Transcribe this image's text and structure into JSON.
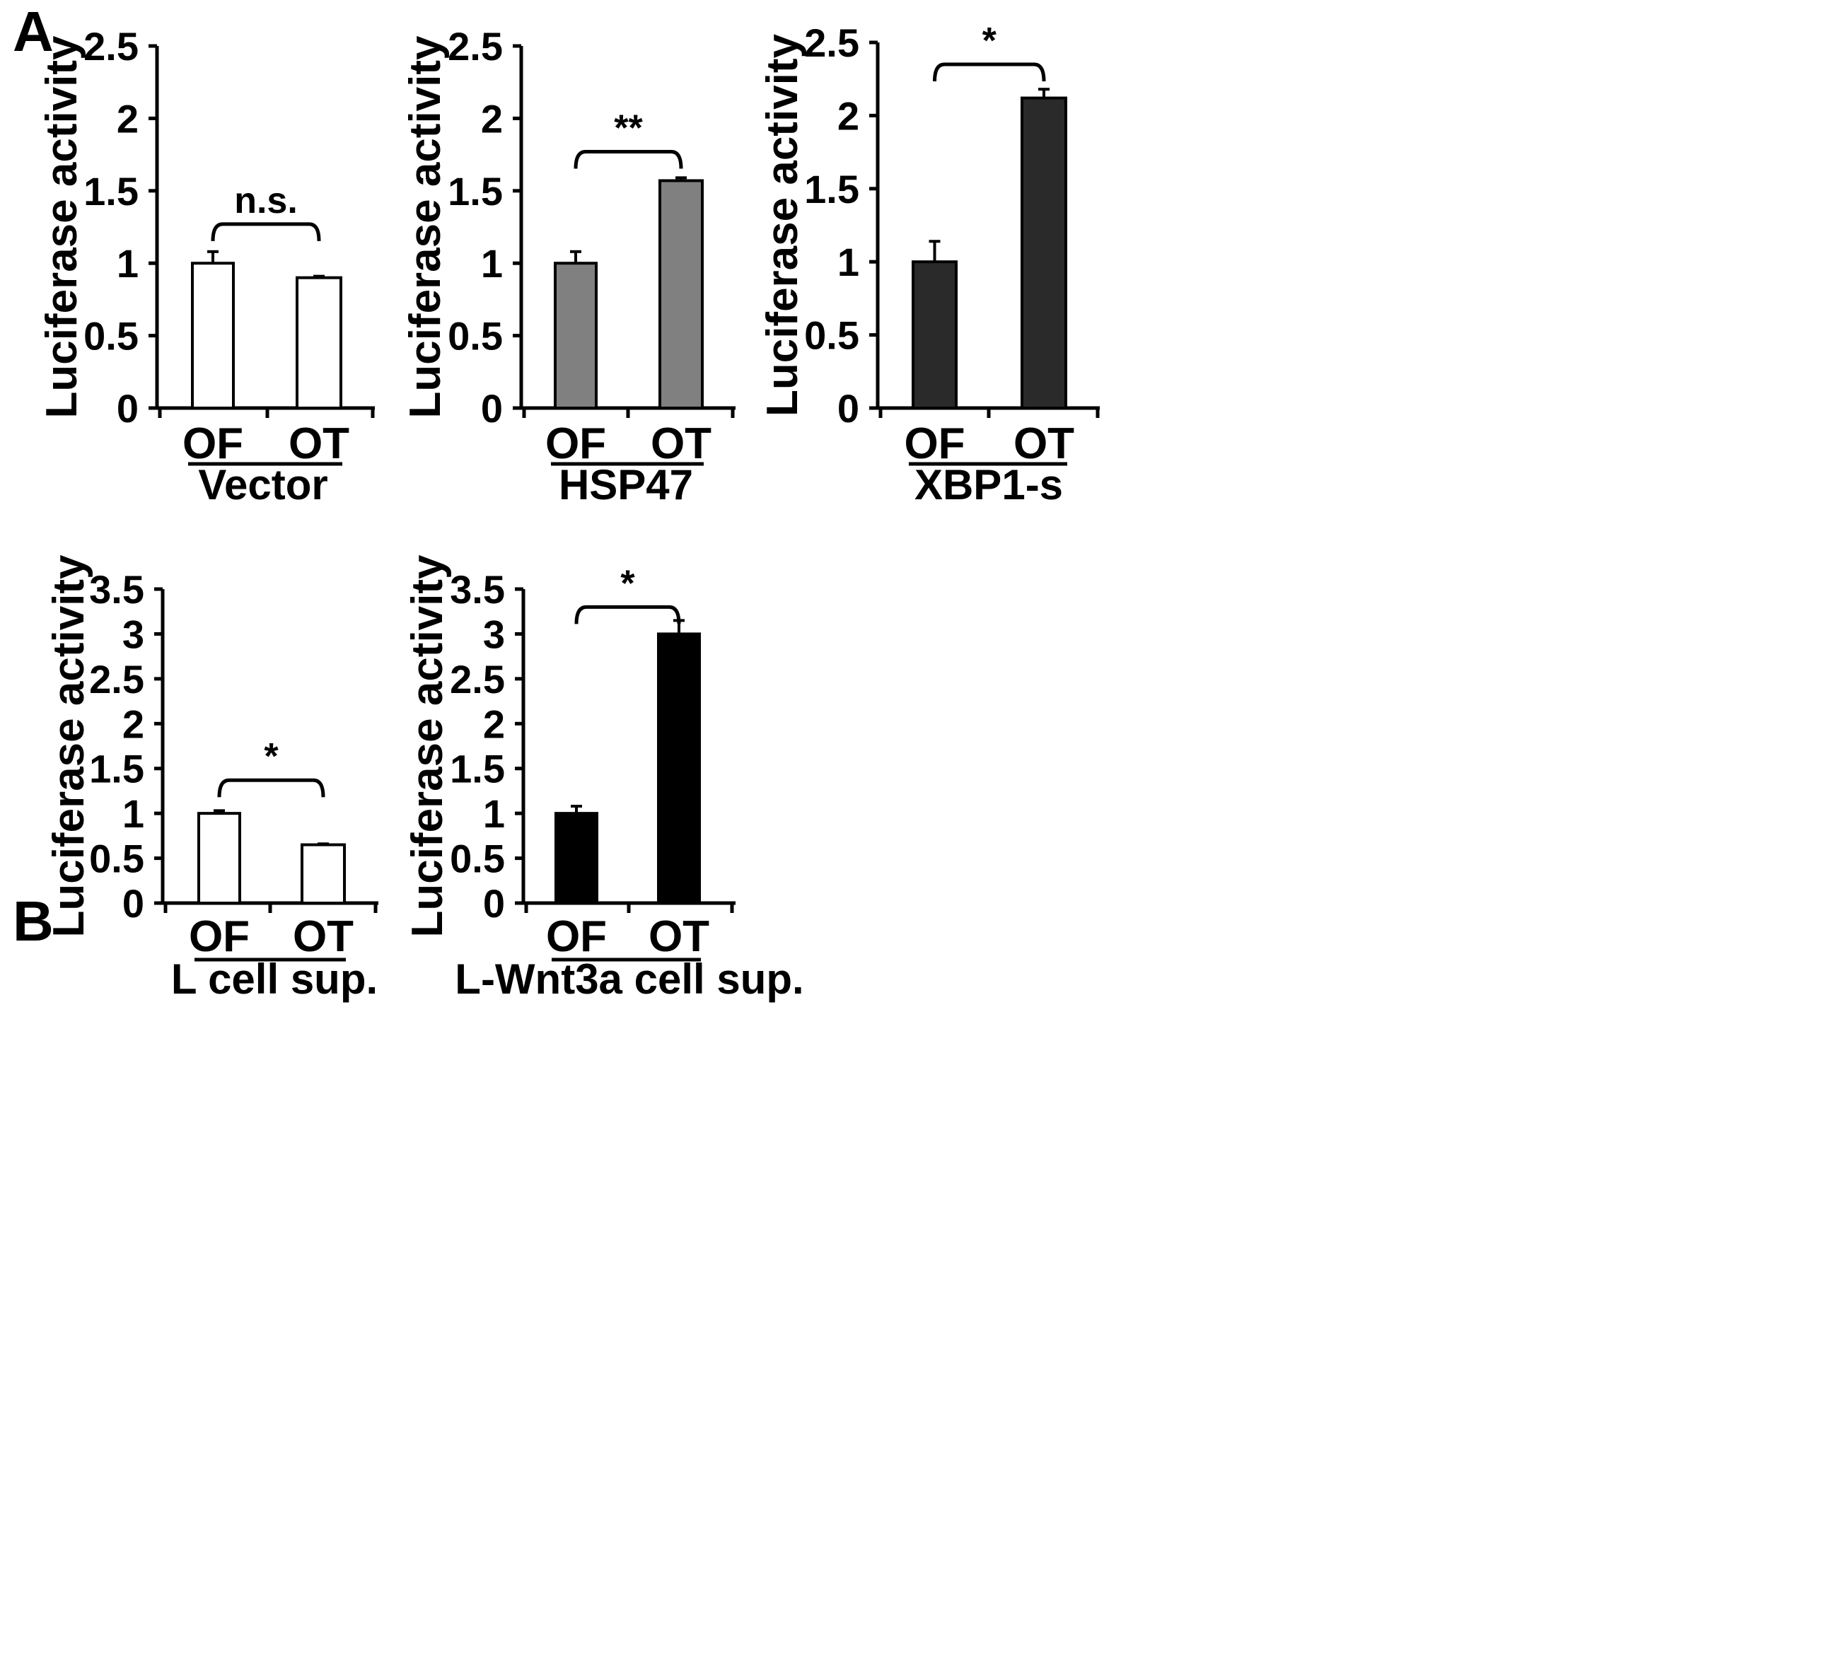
{
  "panels": {
    "a": "A",
    "b": "B"
  },
  "chart_data": [
    {
      "type": "bar",
      "panel": "A",
      "categories": [
        "OF",
        "OT"
      ],
      "values": [
        1.0,
        0.9
      ],
      "errors": [
        0.08,
        0.01
      ],
      "bar_color": "#ffffff",
      "group_label": "Vector",
      "xlabel": "",
      "ylabel": "Luciferase activity",
      "ylim": [
        0,
        2.5
      ],
      "yticks": [
        0,
        0.5,
        1,
        1.5,
        2,
        2.5
      ],
      "ytick_labels": [
        "0",
        "0.5",
        "1",
        "1.5",
        "2",
        "2.5"
      ],
      "significance": {
        "label": "n.s.",
        "level": 1.27
      }
    },
    {
      "type": "bar",
      "panel": "A",
      "categories": [
        "OF",
        "OT"
      ],
      "values": [
        1.0,
        1.57
      ],
      "errors": [
        0.08,
        0.02
      ],
      "bar_color": "#808080",
      "group_label": "HSP47",
      "xlabel": "",
      "ylabel": "Luciferase activity",
      "ylim": [
        0,
        2.5
      ],
      "yticks": [
        0,
        0.5,
        1,
        1.5,
        2,
        2.5
      ],
      "ytick_labels": [
        "0",
        "0.5",
        "1",
        "1.5",
        "2",
        "2.5"
      ],
      "significance": {
        "label": "**",
        "level": 1.77
      }
    },
    {
      "type": "bar",
      "panel": "A",
      "categories": [
        "OF",
        "OT"
      ],
      "values": [
        1.0,
        2.12
      ],
      "errors": [
        0.14,
        0.06
      ],
      "bar_color": "#2a2a2a",
      "group_label": "XBP1-s",
      "xlabel": "",
      "ylabel": "Luciferase activity",
      "ylim": [
        0,
        2.5
      ],
      "yticks": [
        0,
        0.5,
        1,
        1.5,
        2,
        2.5
      ],
      "ytick_labels": [
        "0",
        "0.5",
        "1",
        "1.5",
        "2",
        "2.5"
      ],
      "significance": {
        "label": "*",
        "level": 2.35
      }
    },
    {
      "type": "bar",
      "panel": "B",
      "categories": [
        "OF",
        "OT"
      ],
      "values": [
        1.0,
        0.65
      ],
      "errors": [
        0.03,
        0.01
      ],
      "bar_color": "#ffffff",
      "group_label": "L cell sup.",
      "xlabel": "",
      "ylabel": "Luciferase activity",
      "ylim": [
        0,
        3.5
      ],
      "yticks": [
        0,
        0.5,
        1,
        1.5,
        2,
        2.5,
        3,
        3.5
      ],
      "ytick_labels": [
        "0",
        "0.5",
        "1",
        "1.5",
        "2",
        "2.5",
        "3",
        "3.5"
      ],
      "significance": {
        "label": "*",
        "level": 1.37
      }
    },
    {
      "type": "bar",
      "panel": "B",
      "categories": [
        "OF",
        "OT"
      ],
      "values": [
        1.0,
        3.0
      ],
      "errors": [
        0.08,
        0.15
      ],
      "bar_color": "#000000",
      "group_label": "L-Wnt3a cell sup.",
      "xlabel": "",
      "ylabel": "Luciferase activity",
      "ylim": [
        0,
        3.5
      ],
      "yticks": [
        0,
        0.5,
        1,
        1.5,
        2,
        2.5,
        3,
        3.5
      ],
      "ytick_labels": [
        "0",
        "0.5",
        "1",
        "1.5",
        "2",
        "2.5",
        "3",
        "3.5"
      ],
      "significance": {
        "label": "*",
        "level": 3.3
      }
    }
  ]
}
